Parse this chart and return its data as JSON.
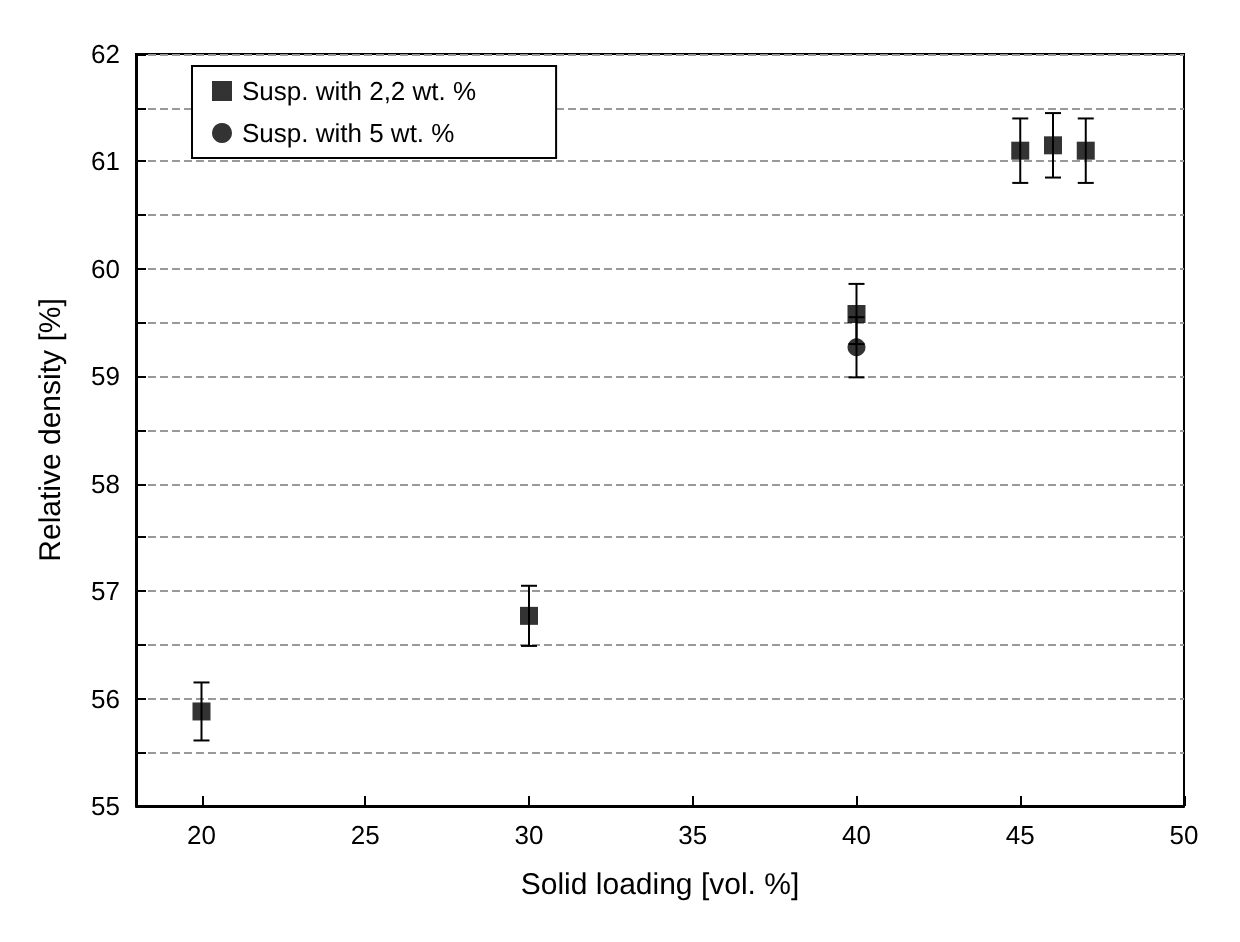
{
  "chart_data": {
    "type": "scatter",
    "xlabel": "Solid loading [vol. %]",
    "ylabel": "Relative density [%]",
    "xlim": [
      18,
      50
    ],
    "xticks": [
      20,
      25,
      30,
      35,
      40,
      45,
      50
    ],
    "ylim": [
      55,
      62
    ],
    "yticks": [
      55,
      {
        "value": 55.5,
        "label": null
      },
      56,
      {
        "value": 56.5,
        "label": null
      },
      57,
      {
        "value": 57.5,
        "label": null
      },
      58,
      {
        "value": 58.5,
        "label": null
      },
      59,
      {
        "value": 59.5,
        "label": null
      },
      60,
      {
        "value": 60.5,
        "label": null
      },
      61,
      {
        "value": 61.5,
        "label": null
      },
      62
    ],
    "grid": "y",
    "legend": "top left",
    "series": [
      {
        "name": "Susp. with 2,2 wt. %",
        "color": "#000000",
        "marker": "square",
        "x": [
          20,
          30,
          40,
          45,
          46,
          47
        ],
        "values": [
          55.88,
          56.77,
          59.58,
          61.1,
          61.15,
          61.1
        ],
        "errors": [
          0.27,
          0.28,
          0.28,
          0.3,
          0.3,
          0.3
        ]
      },
      {
        "name": "Susp. with 5 wt. %",
        "color": "#000000",
        "marker": "circle",
        "x": [
          40
        ],
        "values": [
          59.27
        ],
        "errors": [
          0.28
        ]
      }
    ]
  }
}
